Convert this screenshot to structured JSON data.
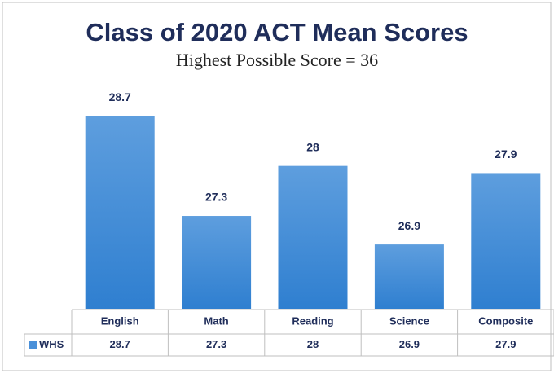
{
  "chart_data": {
    "type": "bar",
    "title": "Class of 2020 ACT Mean Scores",
    "subtitle": "Highest Possible Score = 36",
    "categories": [
      "English",
      "Math",
      "Reading",
      "Science",
      "Composite"
    ],
    "series": [
      {
        "name": "WHS",
        "color": "#4a90d9",
        "values": [
          28.7,
          27.3,
          28,
          26.9,
          27.9
        ]
      }
    ],
    "ylim": [
      26,
      29
    ]
  }
}
